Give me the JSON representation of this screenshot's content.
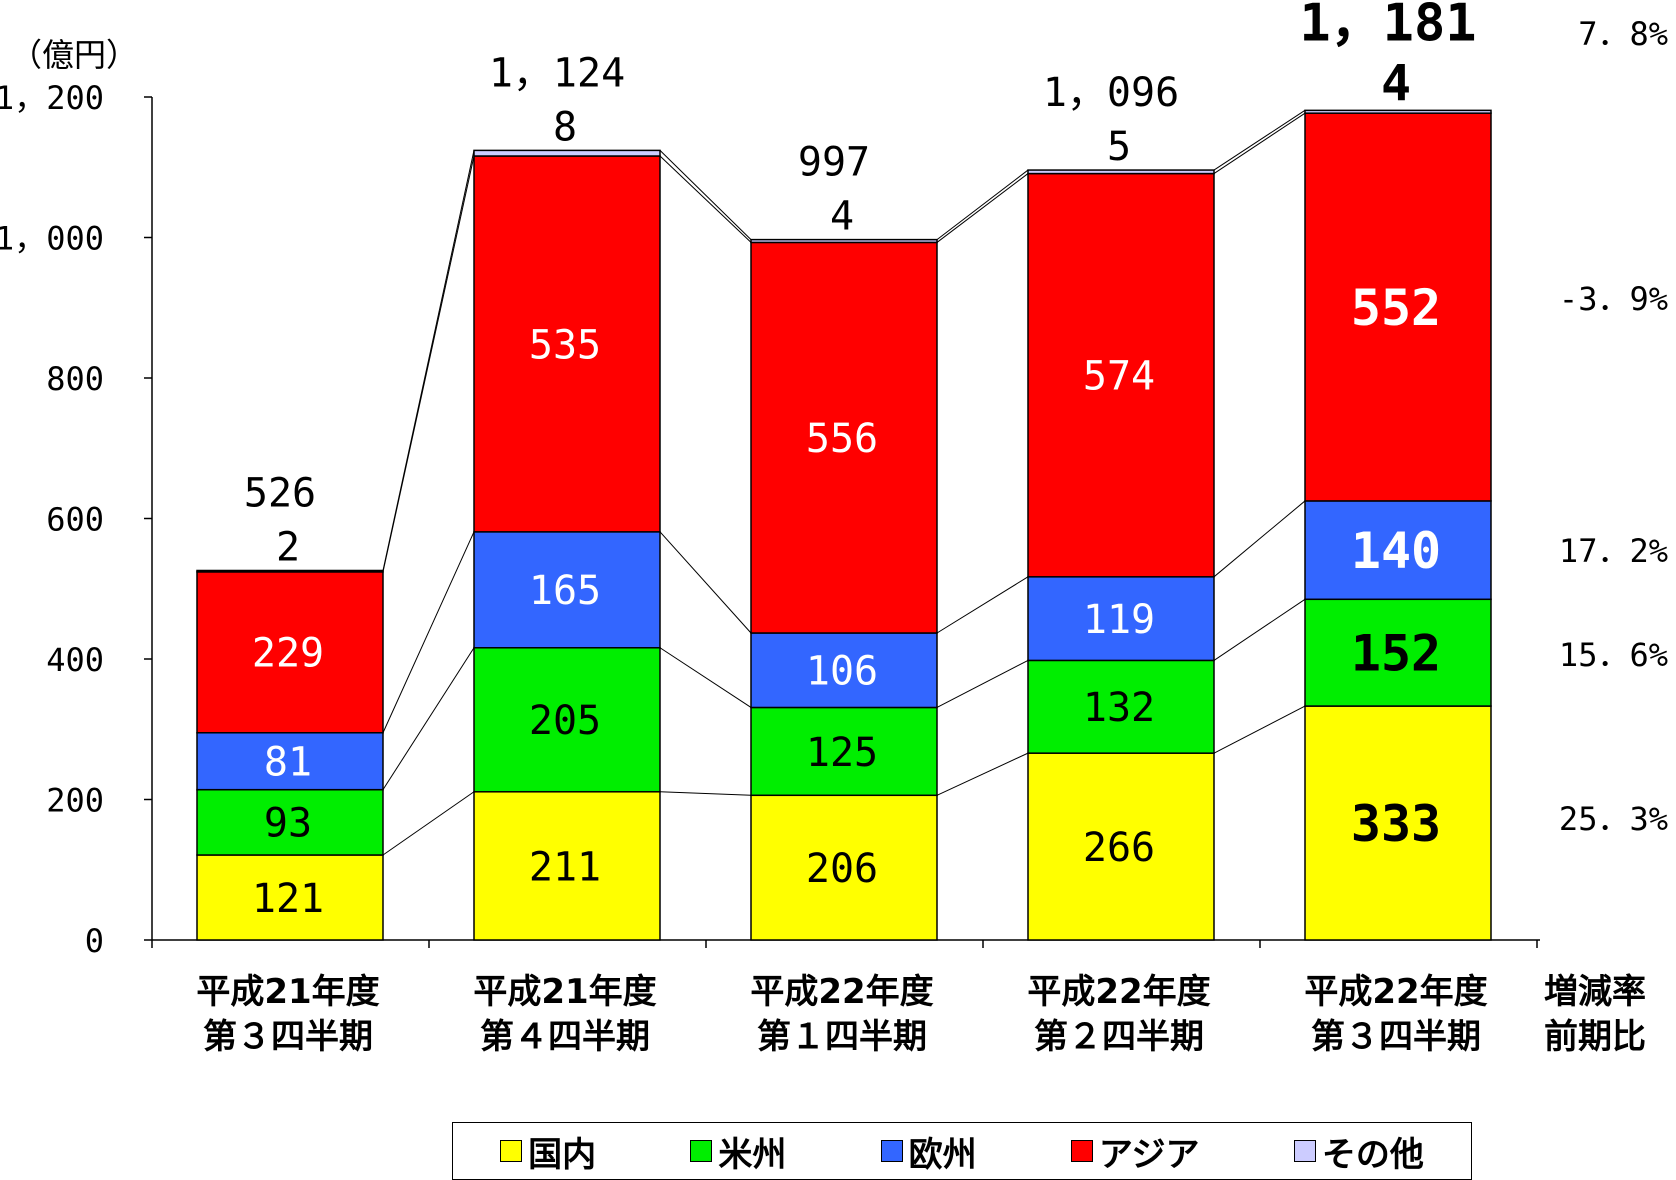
{
  "chart_data": {
    "type": "bar",
    "stacked": true,
    "unit_label": "（億円）",
    "categories": [
      [
        "平成21年度",
        "第３四半期"
      ],
      [
        "平成21年度",
        "第４四半期"
      ],
      [
        "平成22年度",
        "第１四半期"
      ],
      [
        "平成22年度",
        "第２四半期"
      ],
      [
        "平成22年度",
        "第３四半期"
      ]
    ],
    "series": [
      {
        "name": "国内",
        "color": "#ffff00",
        "label_color": "#000000",
        "values": [
          121,
          211,
          206,
          266,
          333
        ]
      },
      {
        "name": "米州",
        "color": "#00ee00",
        "label_color": "#000000",
        "values": [
          93,
          205,
          125,
          132,
          152
        ]
      },
      {
        "name": "欧州",
        "color": "#3366ff",
        "label_color": "#ffffff",
        "values": [
          81,
          165,
          106,
          119,
          140
        ]
      },
      {
        "name": "アジア",
        "color": "#ff0000",
        "label_color": "#ffffff",
        "values": [
          229,
          535,
          556,
          574,
          552
        ]
      },
      {
        "name": "その他",
        "color": "#ccccff",
        "label_color": "#000000",
        "values": [
          2,
          8,
          4,
          5,
          4
        ]
      }
    ],
    "totals": [
      "526",
      "1，124",
      "997",
      "1，096",
      "1，181"
    ],
    "y_ticks": [
      "0",
      "200",
      "400",
      "600",
      "800",
      "1，000",
      "1，200"
    ],
    "ylim": [
      0,
      1200
    ],
    "growth_header": [
      "増減率",
      "前期比"
    ],
    "growth_rates": [
      {
        "text": "7．8%",
        "series": "その他"
      },
      {
        "text": "-3．9%",
        "series": "アジア"
      },
      {
        "text": "17．2%",
        "series": "欧州"
      },
      {
        "text": "15．6%",
        "series": "米州"
      },
      {
        "text": "25．3%",
        "series": "国内"
      }
    ],
    "legend_position": "bottom"
  }
}
